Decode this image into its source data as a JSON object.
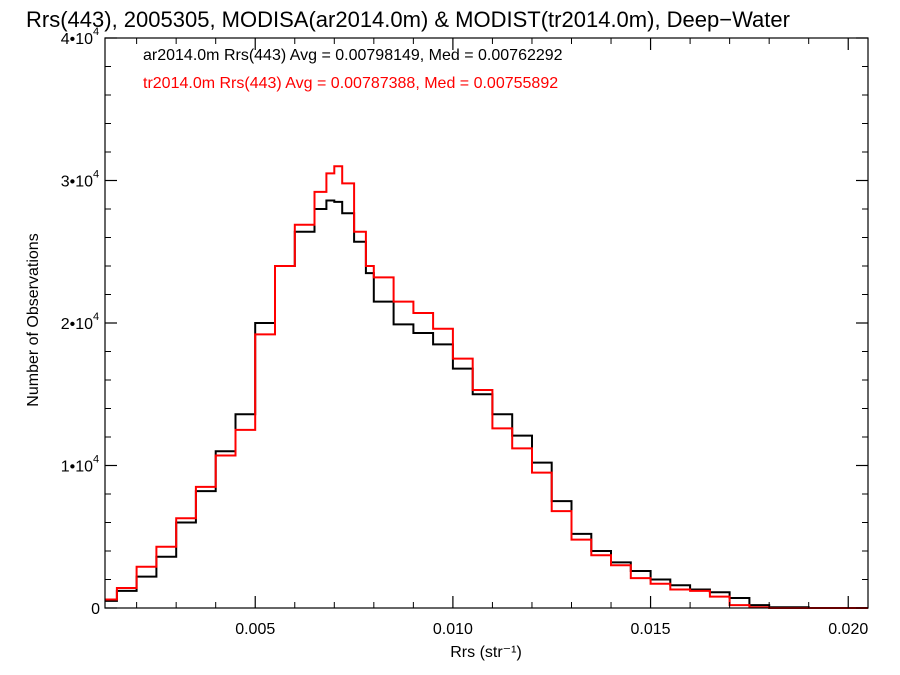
{
  "chart_data": {
    "type": "line",
    "title": "Rrs(443), 2005305, MODISA(ar2014.0m) & MODIST(tr2014.0m), Deep−Water",
    "xlabel": "Rrs (str⁻¹)",
    "ylabel": "Number of Observations",
    "xlim": [
      0.0012,
      0.0205
    ],
    "ylim": [
      0,
      40000
    ],
    "x_ticks": [
      {
        "value": 0.005,
        "label": "0.005"
      },
      {
        "value": 0.01,
        "label": "0.010"
      },
      {
        "value": 0.015,
        "label": "0.015"
      },
      {
        "value": 0.02,
        "label": "0.020"
      }
    ],
    "y_ticks": [
      {
        "value": 0,
        "label": "0",
        "exp": ""
      },
      {
        "value": 10000,
        "label": "1•10",
        "exp": "4"
      },
      {
        "value": 20000,
        "label": "2•10",
        "exp": "4"
      },
      {
        "value": 30000,
        "label": "3•10",
        "exp": "4"
      },
      {
        "value": 40000,
        "label": "4•10",
        "exp": "4"
      }
    ],
    "grid": false,
    "legend_position": "top-left",
    "series": [
      {
        "name": "ar2014.0m Rrs(443) Avg = 0.00798149, Med = 0.00762292",
        "color": "#000000",
        "x": [
          0.0012,
          0.0015,
          0.002,
          0.0025,
          0.003,
          0.0035,
          0.004,
          0.0045,
          0.005,
          0.0055,
          0.006,
          0.0065,
          0.0068,
          0.007,
          0.0072,
          0.0075,
          0.0078,
          0.008,
          0.0085,
          0.009,
          0.0095,
          0.01,
          0.0105,
          0.011,
          0.0115,
          0.012,
          0.0125,
          0.013,
          0.0135,
          0.014,
          0.0145,
          0.015,
          0.0155,
          0.016,
          0.0165,
          0.017,
          0.0175,
          0.018,
          0.019,
          0.0205
        ],
        "y": [
          500,
          1200,
          2200,
          3600,
          6000,
          8200,
          11000,
          13600,
          20000,
          24000,
          26400,
          28000,
          28600,
          28500,
          27700,
          25700,
          23500,
          21500,
          19900,
          19300,
          18500,
          16800,
          15000,
          13600,
          12100,
          10200,
          7500,
          5200,
          4000,
          3200,
          2600,
          2000,
          1600,
          1300,
          1100,
          700,
          200,
          50,
          0,
          0
        ]
      },
      {
        "name": "tr2014.0m Rrs(443) Avg = 0.00787388, Med = 0.00755892",
        "color": "#ff0000",
        "x": [
          0.0012,
          0.0015,
          0.002,
          0.0025,
          0.003,
          0.0035,
          0.004,
          0.0045,
          0.005,
          0.0055,
          0.006,
          0.0065,
          0.0068,
          0.007,
          0.0072,
          0.0075,
          0.0078,
          0.008,
          0.0085,
          0.009,
          0.0095,
          0.01,
          0.0105,
          0.011,
          0.0115,
          0.012,
          0.0125,
          0.013,
          0.0135,
          0.014,
          0.0145,
          0.015,
          0.0155,
          0.016,
          0.0165,
          0.017,
          0.0175,
          0.018,
          0.019,
          0.0205
        ],
        "y": [
          600,
          1400,
          2900,
          4300,
          6300,
          8500,
          10700,
          12500,
          19200,
          24000,
          26900,
          29200,
          30500,
          31000,
          29800,
          26400,
          24000,
          23200,
          21500,
          20700,
          19600,
          17500,
          15300,
          12600,
          11200,
          9500,
          6800,
          4800,
          3700,
          3000,
          2100,
          1700,
          1300,
          1200,
          800,
          200,
          50,
          0,
          0,
          0
        ]
      }
    ]
  }
}
